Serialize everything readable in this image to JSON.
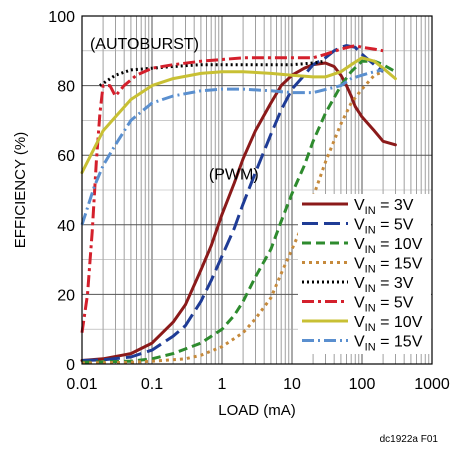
{
  "chart_data": {
    "type": "line",
    "title": "",
    "xlabel": "LOAD (mA)",
    "ylabel": "EFFICIENCY (%)",
    "xscale": "log",
    "xlim": [
      0.01,
      1000
    ],
    "ylim": [
      0,
      100
    ],
    "xticks": [
      {
        "v": 0.01,
        "label": "0.01"
      },
      {
        "v": 0.1,
        "label": "0.1"
      },
      {
        "v": 1,
        "label": "1"
      },
      {
        "v": 10,
        "label": "10"
      },
      {
        "v": 100,
        "label": "100"
      },
      {
        "v": 1000,
        "label": "1000"
      }
    ],
    "yticks": [
      {
        "v": 0,
        "label": "0"
      },
      {
        "v": 20,
        "label": "20"
      },
      {
        "v": 40,
        "label": "40"
      },
      {
        "v": 60,
        "label": "60"
      },
      {
        "v": 80,
        "label": "80"
      },
      {
        "v": 100,
        "label": "100"
      }
    ],
    "grid": true,
    "annotations": [
      {
        "text": "(AUTOBURST)",
        "x": 0.013,
        "y": 90.5
      },
      {
        "text": "(PWM)",
        "x": 0.65,
        "y": 53
      }
    ],
    "legend_position": "bottom-right",
    "series": [
      {
        "name": "VIN = 3V",
        "legend": {
          "main": "V",
          "sub": "IN",
          "rest": " = 3V"
        },
        "color": "#8b1a1a",
        "dash": "",
        "width": 3,
        "points": [
          [
            0.01,
            1
          ],
          [
            0.02,
            1.5
          ],
          [
            0.05,
            3
          ],
          [
            0.1,
            6
          ],
          [
            0.2,
            12
          ],
          [
            0.3,
            17
          ],
          [
            0.5,
            27
          ],
          [
            0.7,
            34
          ],
          [
            1,
            43
          ],
          [
            1.5,
            52
          ],
          [
            2,
            59
          ],
          [
            3,
            67
          ],
          [
            5,
            75
          ],
          [
            7,
            80
          ],
          [
            10,
            83
          ],
          [
            15,
            85
          ],
          [
            20,
            86
          ],
          [
            30,
            86.5
          ],
          [
            40,
            85.5
          ],
          [
            50,
            83
          ],
          [
            60,
            80
          ],
          [
            70,
            77
          ],
          [
            80,
            74
          ],
          [
            100,
            71
          ],
          [
            150,
            67
          ],
          [
            200,
            64
          ],
          [
            300,
            63
          ]
        ]
      },
      {
        "name": "VIN = 5V",
        "legend": {
          "main": "V",
          "sub": "IN",
          "rest": " = 5V"
        },
        "color": "#1f3c96",
        "dash": "16,6",
        "width": 3,
        "points": [
          [
            0.01,
            1
          ],
          [
            0.02,
            1.2
          ],
          [
            0.05,
            2
          ],
          [
            0.1,
            4
          ],
          [
            0.2,
            8
          ],
          [
            0.3,
            11
          ],
          [
            0.5,
            18
          ],
          [
            0.7,
            24
          ],
          [
            1,
            31
          ],
          [
            1.5,
            39
          ],
          [
            2,
            46
          ],
          [
            3,
            55
          ],
          [
            5,
            66
          ],
          [
            7,
            73
          ],
          [
            10,
            79
          ],
          [
            15,
            83
          ],
          [
            20,
            86
          ],
          [
            30,
            88
          ],
          [
            40,
            90
          ],
          [
            50,
            91
          ],
          [
            60,
            91.5
          ],
          [
            80,
            91
          ],
          [
            100,
            89
          ],
          [
            150,
            86
          ],
          [
            200,
            84
          ]
        ]
      },
      {
        "name": "VIN = 10V",
        "legend": {
          "main": "V",
          "sub": "IN",
          "rest": " = 10V"
        },
        "color": "#2e8b2e",
        "dash": "9,5",
        "width": 3,
        "points": [
          [
            0.01,
            0.5
          ],
          [
            0.05,
            0.8
          ],
          [
            0.1,
            1.5
          ],
          [
            0.2,
            3
          ],
          [
            0.5,
            6
          ],
          [
            1,
            10
          ],
          [
            1.5,
            14
          ],
          [
            2,
            18
          ],
          [
            3,
            25
          ],
          [
            5,
            33
          ],
          [
            7,
            41
          ],
          [
            10,
            49
          ],
          [
            15,
            57
          ],
          [
            20,
            64
          ],
          [
            30,
            72
          ],
          [
            50,
            80
          ],
          [
            70,
            84
          ],
          [
            100,
            87
          ],
          [
            150,
            87
          ],
          [
            200,
            86
          ],
          [
            300,
            84
          ]
        ]
      },
      {
        "name": "VIN = 15V",
        "legend": {
          "main": "V",
          "sub": "IN",
          "rest": " = 15V"
        },
        "color": "#c68a3c",
        "dash": "3,4",
        "width": 3,
        "points": [
          [
            0.01,
            0.3
          ],
          [
            0.05,
            0.5
          ],
          [
            0.1,
            0.8
          ],
          [
            0.3,
            1.5
          ],
          [
            0.5,
            2.5
          ],
          [
            1,
            5
          ],
          [
            2,
            9
          ],
          [
            3,
            13
          ],
          [
            5,
            19
          ],
          [
            7,
            26
          ],
          [
            10,
            33
          ],
          [
            15,
            41
          ],
          [
            20,
            48
          ],
          [
            30,
            58
          ],
          [
            50,
            69
          ],
          [
            70,
            75
          ],
          [
            100,
            79
          ],
          [
            150,
            83
          ],
          [
            200,
            84
          ]
        ]
      },
      {
        "name": "VIN = 3V",
        "legend": {
          "main": "V",
          "sub": "IN",
          "rest": " = 3V"
        },
        "color": "#000000",
        "dash": "2,3",
        "width": 3,
        "points": [
          [
            0.018,
            80
          ],
          [
            0.03,
            83
          ],
          [
            0.05,
            84.5
          ],
          [
            0.1,
            85
          ],
          [
            0.2,
            85.5
          ],
          [
            0.5,
            86
          ],
          [
            1,
            86
          ],
          [
            2,
            86
          ],
          [
            5,
            86
          ],
          [
            10,
            86
          ],
          [
            20,
            86.5
          ],
          [
            30,
            87
          ]
        ]
      },
      {
        "name": "VIN = 5V",
        "legend": {
          "main": "V",
          "sub": "IN",
          "rest": " = 5V"
        },
        "color": "#d4202c",
        "dash": "12,4,3,4",
        "width": 3,
        "points": [
          [
            0.01,
            9
          ],
          [
            0.012,
            20
          ],
          [
            0.014,
            38
          ],
          [
            0.016,
            58
          ],
          [
            0.018,
            72
          ],
          [
            0.02,
            80
          ],
          [
            0.025,
            80
          ],
          [
            0.03,
            77
          ],
          [
            0.04,
            80
          ],
          [
            0.06,
            83
          ],
          [
            0.1,
            85
          ],
          [
            0.2,
            86
          ],
          [
            0.5,
            87
          ],
          [
            1,
            87.5
          ],
          [
            2,
            88
          ],
          [
            5,
            88
          ],
          [
            10,
            88
          ],
          [
            20,
            88
          ],
          [
            30,
            89
          ],
          [
            50,
            90.5
          ],
          [
            80,
            91.5
          ],
          [
            100,
            91
          ],
          [
            150,
            90.5
          ],
          [
            200,
            90
          ]
        ]
      },
      {
        "name": "VIN = 10V",
        "legend": {
          "main": "V",
          "sub": "IN",
          "rest": " = 10V"
        },
        "color": "#c8c034",
        "dash": "",
        "width": 3,
        "points": [
          [
            0.01,
            55
          ],
          [
            0.015,
            62
          ],
          [
            0.02,
            67
          ],
          [
            0.03,
            71
          ],
          [
            0.05,
            76
          ],
          [
            0.1,
            80
          ],
          [
            0.2,
            82
          ],
          [
            0.5,
            83.5
          ],
          [
            1,
            84
          ],
          [
            2,
            84
          ],
          [
            5,
            83.5
          ],
          [
            10,
            83
          ],
          [
            20,
            82.5
          ],
          [
            30,
            82.5
          ],
          [
            50,
            84
          ],
          [
            70,
            86
          ],
          [
            100,
            88
          ],
          [
            150,
            87
          ],
          [
            200,
            85
          ],
          [
            300,
            82
          ]
        ]
      },
      {
        "name": "VIN = 15V",
        "legend": {
          "main": "V",
          "sub": "IN",
          "rest": " = 15V"
        },
        "color": "#5a8fcf",
        "dash": "12,4,2,4",
        "width": 3,
        "points": [
          [
            0.01,
            40
          ],
          [
            0.015,
            51
          ],
          [
            0.02,
            57
          ],
          [
            0.03,
            63
          ],
          [
            0.05,
            70
          ],
          [
            0.1,
            75
          ],
          [
            0.2,
            77
          ],
          [
            0.5,
            78.5
          ],
          [
            1,
            79
          ],
          [
            2,
            79
          ],
          [
            5,
            78.5
          ],
          [
            10,
            78
          ],
          [
            20,
            78
          ],
          [
            50,
            80
          ],
          [
            70,
            82
          ],
          [
            100,
            83
          ],
          [
            150,
            84
          ],
          [
            200,
            84.5
          ]
        ]
      }
    ]
  },
  "figure_code": "dc1922a F01"
}
